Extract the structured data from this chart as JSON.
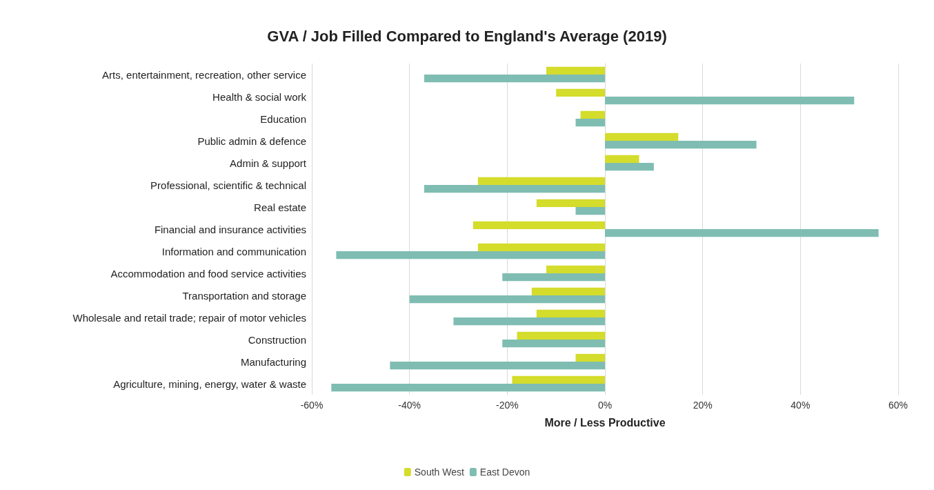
{
  "chart_data": {
    "type": "bar",
    "orientation": "horizontal",
    "title": "GVA / Job Filled Compared to England's Average (2019)",
    "xlabel": "More / Less Productive",
    "categories": [
      "Arts, entertainment, recreation, other service",
      "Health & social work",
      "Education",
      "Public admin & defence",
      "Admin & support",
      "Professional, scientific & technical",
      "Real estate",
      "Financial and insurance activities",
      "Information and communication",
      "Accommodation and food service activities",
      "Transportation and storage",
      "Wholesale and retail trade; repair of motor vehicles",
      "Construction",
      "Manufacturing",
      "Agriculture, mining, energy, water & waste"
    ],
    "series": [
      {
        "name": "South West",
        "color": "#d4dc2c",
        "values": [
          -12,
          -10,
          -5,
          15,
          7,
          -26,
          -14,
          -27,
          -26,
          -12,
          -15,
          -14,
          -18,
          -6,
          -19
        ]
      },
      {
        "name": "East Devon",
        "color": "#7fbdb2",
        "values": [
          -37,
          51,
          -6,
          31,
          10,
          -37,
          -6,
          56,
          -55,
          -21,
          -40,
          -31,
          -21,
          -44,
          -56
        ]
      }
    ],
    "xlim": [
      -60,
      60
    ],
    "xticks": [
      {
        "value": -60,
        "label": "-60%"
      },
      {
        "value": -40,
        "label": "-40%"
      },
      {
        "value": -20,
        "label": "-20%"
      },
      {
        "value": 0,
        "label": "0%"
      },
      {
        "value": 20,
        "label": "20%"
      },
      {
        "value": 40,
        "label": "40%"
      },
      {
        "value": 60,
        "label": "60%"
      }
    ],
    "grid": "x",
    "legend": "bottom"
  }
}
